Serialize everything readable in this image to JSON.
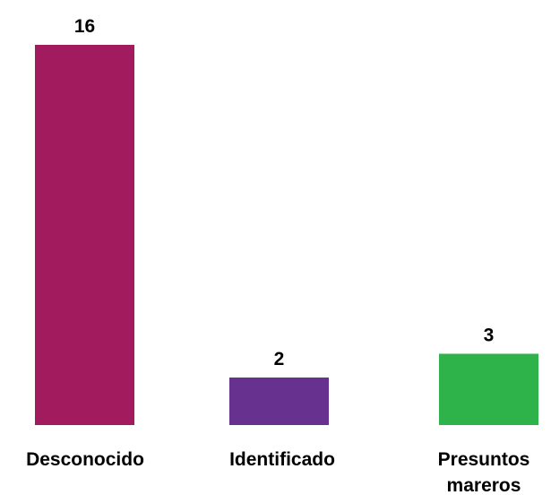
{
  "chart_data": {
    "type": "bar",
    "title": "",
    "xlabel": "",
    "ylabel": "",
    "grid": false,
    "legend": "none",
    "categories": [
      [
        "Desconocido"
      ],
      [
        "Identificado"
      ],
      [
        "Presuntos",
        "mareros"
      ]
    ],
    "values": [
      16,
      2,
      3
    ],
    "value_labels": [
      "16",
      "2",
      "3"
    ],
    "colors": [
      "#A11B5E",
      "#66318F",
      "#2DB34A"
    ]
  }
}
